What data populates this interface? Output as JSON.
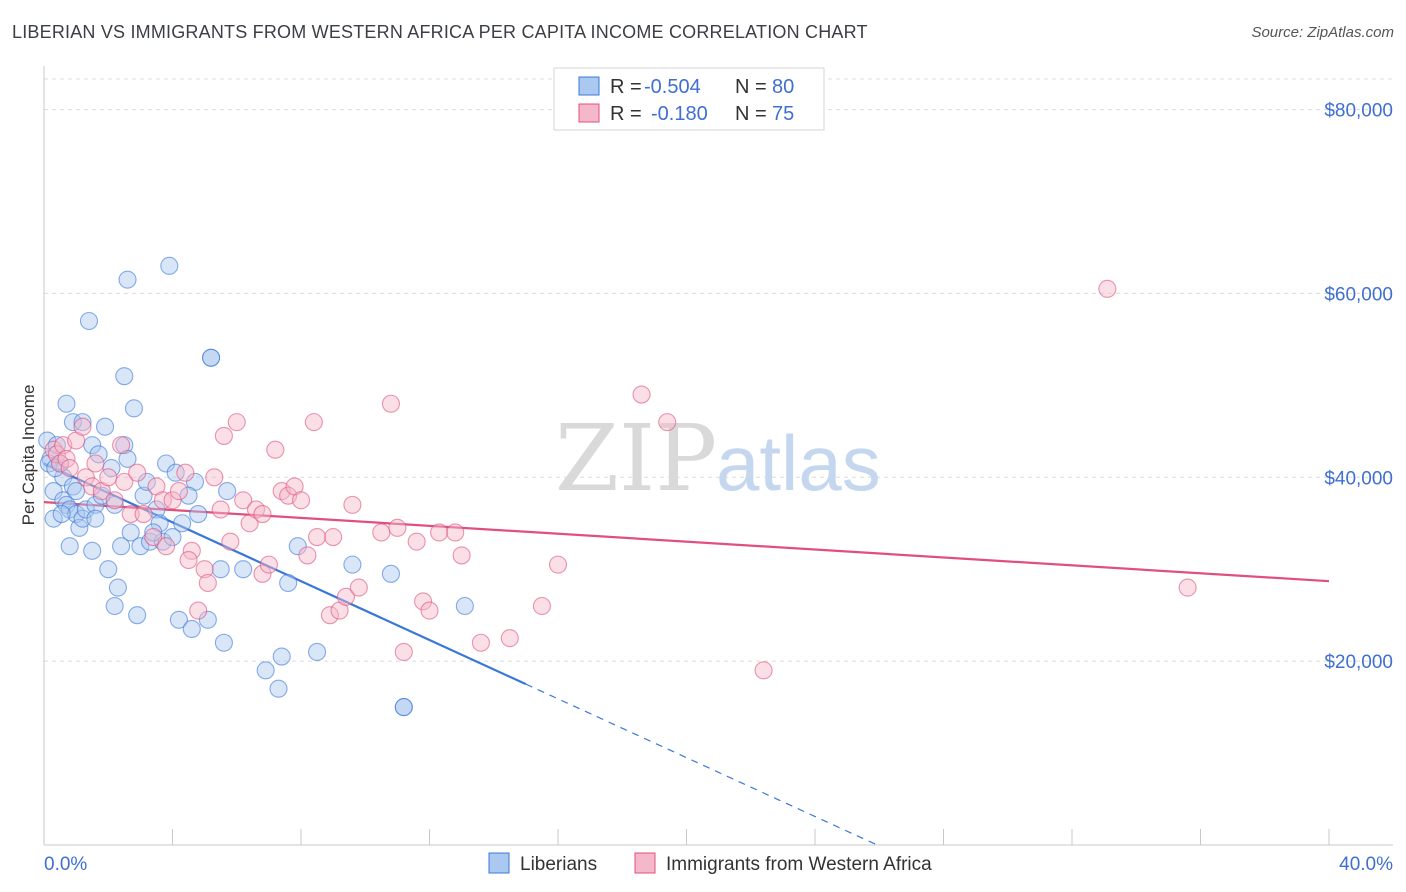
{
  "title": "LIBERIAN VS IMMIGRANTS FROM WESTERN AFRICA PER CAPITA INCOME CORRELATION CHART",
  "source": "Source: ZipAtlas.com",
  "watermark": {
    "zip": "ZIP",
    "atlas": "atlas"
  },
  "chart_data": {
    "type": "scatter",
    "title": "LIBERIAN VS IMMIGRANTS FROM WESTERN AFRICA PER CAPITA INCOME CORRELATION CHART",
    "ylabel": "Per Capita Income",
    "xlabel": "",
    "xlim": [
      0,
      40
    ],
    "ylim": [
      0,
      83000
    ],
    "x_tick_labels": [
      "0.0%",
      "40.0%"
    ],
    "y_ticks": [
      20000,
      40000,
      60000,
      80000
    ],
    "y_tick_labels": [
      "$20,000",
      "$40,000",
      "$60,000",
      "$80,000"
    ],
    "grid": true,
    "legend_placement": "top-center",
    "stats": [
      {
        "r_label": "R =",
        "r_value": "-0.504",
        "n_label": "N =",
        "n_value": "80"
      },
      {
        "r_label": "R =",
        "r_value": "-0.180",
        "n_label": "N =",
        "n_value": "75"
      }
    ],
    "series": [
      {
        "name": "Liberians",
        "color": "#3a78d8",
        "fill": "#aac8f0",
        "trend": {
          "x0": 0,
          "y0": 41500,
          "x1": 15,
          "y1": 17500,
          "dash_to_x": 26
        },
        "points": [
          [
            0.1,
            44000
          ],
          [
            0.2,
            42000
          ],
          [
            0.3,
            38500
          ],
          [
            0.3,
            35500
          ],
          [
            0.4,
            43500
          ],
          [
            0.5,
            41500
          ],
          [
            0.6,
            40000
          ],
          [
            0.6,
            37500
          ],
          [
            0.7,
            37000
          ],
          [
            0.7,
            48000
          ],
          [
            0.8,
            36500
          ],
          [
            0.8,
            32500
          ],
          [
            0.9,
            46000
          ],
          [
            0.9,
            39000
          ],
          [
            1.0,
            36000
          ],
          [
            1.1,
            34500
          ],
          [
            1.2,
            35500
          ],
          [
            1.2,
            46000
          ],
          [
            1.3,
            36500
          ],
          [
            1.4,
            57000
          ],
          [
            1.5,
            43500
          ],
          [
            1.5,
            32000
          ],
          [
            1.6,
            37000
          ],
          [
            1.7,
            42500
          ],
          [
            1.8,
            38000
          ],
          [
            1.9,
            45500
          ],
          [
            2.0,
            30000
          ],
          [
            2.1,
            41000
          ],
          [
            2.2,
            26000
          ],
          [
            2.3,
            28000
          ],
          [
            2.4,
            32500
          ],
          [
            2.5,
            51000
          ],
          [
            2.5,
            43500
          ],
          [
            2.6,
            42000
          ],
          [
            2.6,
            61500
          ],
          [
            2.7,
            34000
          ],
          [
            2.8,
            47500
          ],
          [
            2.9,
            25000
          ],
          [
            3.0,
            32500
          ],
          [
            3.1,
            38000
          ],
          [
            3.2,
            39500
          ],
          [
            3.3,
            33000
          ],
          [
            3.5,
            36500
          ],
          [
            3.6,
            35000
          ],
          [
            3.7,
            33000
          ],
          [
            3.8,
            41500
          ],
          [
            3.9,
            63000
          ],
          [
            4.0,
            33500
          ],
          [
            4.1,
            40500
          ],
          [
            4.2,
            24500
          ],
          [
            4.3,
            35000
          ],
          [
            4.6,
            23500
          ],
          [
            4.7,
            39500
          ],
          [
            4.8,
            36000
          ],
          [
            5.1,
            24500
          ],
          [
            5.2,
            53000
          ],
          [
            5.2,
            53000
          ],
          [
            5.5,
            30000
          ],
          [
            5.6,
            22000
          ],
          [
            5.7,
            38500
          ],
          [
            6.2,
            30000
          ],
          [
            6.9,
            19000
          ],
          [
            7.3,
            17000
          ],
          [
            7.4,
            20500
          ],
          [
            7.6,
            28500
          ],
          [
            7.9,
            32500
          ],
          [
            8.5,
            21000
          ],
          [
            9.6,
            30500
          ],
          [
            10.8,
            29500
          ],
          [
            11.2,
            15000
          ],
          [
            11.2,
            15000
          ],
          [
            13.1,
            26000
          ],
          [
            0.15,
            41500
          ],
          [
            0.35,
            41000
          ],
          [
            0.55,
            36000
          ],
          [
            1.0,
            38500
          ],
          [
            1.6,
            35500
          ],
          [
            2.2,
            37000
          ],
          [
            3.4,
            34000
          ],
          [
            4.5,
            38000
          ]
        ]
      },
      {
        "name": "Immigrants from Western Africa",
        "color": "#e0507f",
        "fill": "#f5b7ca",
        "trend": {
          "x0": 0,
          "y0": 37300,
          "x1": 40,
          "y1": 28700
        },
        "points": [
          [
            0.3,
            43000
          ],
          [
            0.4,
            42500
          ],
          [
            0.5,
            41500
          ],
          [
            0.6,
            43500
          ],
          [
            0.7,
            42000
          ],
          [
            0.8,
            41000
          ],
          [
            1.0,
            44000
          ],
          [
            1.2,
            45500
          ],
          [
            1.3,
            40000
          ],
          [
            1.5,
            39000
          ],
          [
            1.6,
            41500
          ],
          [
            1.8,
            38500
          ],
          [
            2.0,
            40000
          ],
          [
            2.2,
            37500
          ],
          [
            2.4,
            43500
          ],
          [
            2.5,
            39500
          ],
          [
            2.7,
            36000
          ],
          [
            2.9,
            40500
          ],
          [
            3.1,
            36000
          ],
          [
            3.4,
            33500
          ],
          [
            3.5,
            39000
          ],
          [
            3.7,
            37500
          ],
          [
            3.8,
            32500
          ],
          [
            4.0,
            37500
          ],
          [
            4.2,
            38500
          ],
          [
            4.4,
            40500
          ],
          [
            4.6,
            32000
          ],
          [
            4.8,
            25500
          ],
          [
            5.0,
            30000
          ],
          [
            5.1,
            28500
          ],
          [
            5.3,
            40000
          ],
          [
            5.5,
            36500
          ],
          [
            5.6,
            44500
          ],
          [
            5.8,
            33000
          ],
          [
            6.0,
            46000
          ],
          [
            6.2,
            37500
          ],
          [
            6.4,
            35000
          ],
          [
            6.6,
            36500
          ],
          [
            6.8,
            29500
          ],
          [
            7.0,
            30500
          ],
          [
            7.2,
            43000
          ],
          [
            7.4,
            38500
          ],
          [
            7.6,
            38000
          ],
          [
            7.8,
            39000
          ],
          [
            8.0,
            37500
          ],
          [
            8.2,
            31500
          ],
          [
            8.4,
            46000
          ],
          [
            8.5,
            33500
          ],
          [
            8.9,
            25000
          ],
          [
            9.0,
            33500
          ],
          [
            9.2,
            25500
          ],
          [
            9.4,
            27000
          ],
          [
            9.6,
            37000
          ],
          [
            9.8,
            28000
          ],
          [
            10.8,
            48000
          ],
          [
            11.0,
            34500
          ],
          [
            11.2,
            21000
          ],
          [
            11.6,
            33000
          ],
          [
            11.8,
            26500
          ],
          [
            12.0,
            25500
          ],
          [
            12.3,
            34000
          ],
          [
            12.8,
            34000
          ],
          [
            13.0,
            31500
          ],
          [
            13.6,
            22000
          ],
          [
            14.5,
            22500
          ],
          [
            15.5,
            26000
          ],
          [
            16.0,
            30500
          ],
          [
            18.6,
            49000
          ],
          [
            19.4,
            46000
          ],
          [
            22.4,
            19000
          ],
          [
            33.1,
            60500
          ],
          [
            35.6,
            28000
          ],
          [
            4.5,
            31000
          ],
          [
            6.8,
            36000
          ],
          [
            10.5,
            34000
          ]
        ]
      }
    ]
  }
}
